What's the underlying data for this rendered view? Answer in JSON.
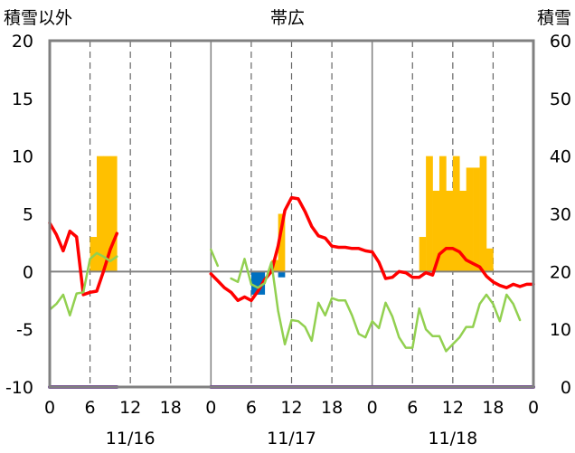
{
  "chart_data": {
    "type": "bar",
    "title": "帯広",
    "left_axis_title": "積雪以外",
    "right_axis_title": "積雪",
    "left_axis": {
      "min": -10,
      "max": 20,
      "ticks": [
        "-10",
        "-5",
        "0",
        "5",
        "10",
        "15",
        "20"
      ]
    },
    "right_axis": {
      "min": 0,
      "max": 60,
      "ticks": [
        "0",
        "10",
        "20",
        "30",
        "40",
        "50",
        "60"
      ]
    },
    "x_tick_labels": [
      "0",
      "6",
      "12",
      "18",
      "0",
      "6",
      "12",
      "18",
      "0",
      "6",
      "12",
      "18",
      "0"
    ],
    "date_labels": [
      "11/16",
      "11/17",
      "11/18"
    ],
    "grid": "dashed vertical every 6h, solid at day boundaries",
    "colors": {
      "precip_bar": "#FFC000",
      "negative_bar": "#0070C0",
      "red_line": "#FF0000",
      "green_line": "#92D050",
      "purple_line": "#7030A0",
      "frame": "#808080",
      "zero_line": "#808080"
    },
    "series": [
      {
        "kind": "bar_left_axis",
        "color": "#FFC000",
        "values": [
          [
            6,
            3
          ],
          [
            7,
            10
          ],
          [
            8,
            10
          ],
          [
            9,
            10
          ],
          [
            33,
            1
          ],
          [
            34,
            5
          ],
          [
            55,
            3
          ],
          [
            56,
            10
          ],
          [
            57,
            7
          ],
          [
            58,
            10
          ],
          [
            59,
            7
          ],
          [
            60,
            10
          ],
          [
            61,
            7
          ],
          [
            62,
            9
          ],
          [
            63,
            9
          ],
          [
            64,
            10
          ],
          [
            65,
            2
          ]
        ]
      },
      {
        "kind": "bar_left_axis",
        "color": "#0070C0",
        "values": [
          [
            30,
            -2
          ],
          [
            31,
            -2
          ],
          [
            34,
            -0.5
          ]
        ]
      },
      {
        "kind": "line_left_axis",
        "color": "#FF0000",
        "segments": [
          [
            [
              0,
              4.2
            ],
            [
              1,
              3.2
            ],
            [
              2,
              1.8
            ],
            [
              3,
              3.5
            ],
            [
              4,
              3
            ],
            [
              5,
              -2
            ],
            [
              6,
              -1.8
            ],
            [
              7,
              -1.7
            ],
            [
              8,
              0
            ],
            [
              9,
              1.9
            ],
            [
              10,
              3.3
            ]
          ],
          [
            [
              24,
              -0.2
            ],
            [
              25,
              -0.8
            ],
            [
              26,
              -1.4
            ],
            [
              27,
              -1.8
            ],
            [
              28,
              -2.5
            ],
            [
              29,
              -2.2
            ],
            [
              30,
              -2.5
            ],
            [
              31,
              -1.7
            ],
            [
              32,
              -0.7
            ],
            [
              33,
              0
            ],
            [
              34,
              2.2
            ],
            [
              35,
              5.3
            ],
            [
              36,
              6.4
            ],
            [
              37,
              6.3
            ],
            [
              38,
              5.2
            ],
            [
              39,
              3.9
            ],
            [
              40,
              3.1
            ],
            [
              41,
              2.9
            ],
            [
              42,
              2.2
            ],
            [
              43,
              2.1
            ],
            [
              44,
              2.1
            ],
            [
              45,
              2.0
            ],
            [
              46,
              2.0
            ],
            [
              47,
              1.8
            ],
            [
              48,
              1.7
            ],
            [
              49,
              0.8
            ],
            [
              50,
              -0.6
            ],
            [
              51,
              -0.5
            ],
            [
              52,
              0
            ],
            [
              53,
              -0.1
            ],
            [
              54,
              -0.5
            ],
            [
              55,
              -0.5
            ],
            [
              56,
              -0.1
            ],
            [
              57,
              -0.3
            ],
            [
              58,
              1.5
            ],
            [
              59,
              2.0
            ],
            [
              60,
              2.0
            ],
            [
              61,
              1.7
            ],
            [
              62,
              1.0
            ],
            [
              63,
              0.7
            ],
            [
              64,
              0.4
            ],
            [
              65,
              -0.4
            ],
            [
              66,
              -0.9
            ],
            [
              67,
              -1.2
            ],
            [
              68,
              -1.4
            ],
            [
              69,
              -1.1
            ],
            [
              70,
              -1.3
            ],
            [
              71,
              -1.1
            ],
            [
              72,
              -1.1
            ]
          ]
        ]
      },
      {
        "kind": "line_left_axis",
        "color": "#92D050",
        "segments": [
          [
            [
              0,
              -3.3
            ],
            [
              1,
              -2.8
            ],
            [
              2,
              -2
            ],
            [
              3,
              -3.8
            ],
            [
              4,
              -1.9
            ],
            [
              5,
              -1.8
            ],
            [
              6,
              1.1
            ],
            [
              7,
              1.6
            ],
            [
              8,
              1.3
            ],
            [
              9,
              0.9
            ],
            [
              10,
              1.3
            ]
          ],
          [
            [
              24,
              1.9
            ],
            [
              25,
              0.5
            ]
          ],
          [
            [
              27,
              -0.6
            ],
            [
              28,
              -0.9
            ],
            [
              29,
              1.1
            ],
            [
              30,
              -1.1
            ],
            [
              31,
              -1.4
            ],
            [
              32,
              -1.0
            ],
            [
              33,
              0.8
            ],
            [
              34,
              -3.4
            ],
            [
              35,
              -6.3
            ],
            [
              36,
              -4.2
            ],
            [
              37,
              -4.3
            ],
            [
              38,
              -4.8
            ],
            [
              39,
              -6.0
            ],
            [
              40,
              -2.7
            ],
            [
              41,
              -3.8
            ],
            [
              42,
              -2.3
            ],
            [
              43,
              -2.5
            ],
            [
              44,
              -2.5
            ],
            [
              45,
              -3.8
            ],
            [
              46,
              -5.4
            ],
            [
              47,
              -5.7
            ],
            [
              48,
              -4.3
            ],
            [
              49,
              -4.9
            ],
            [
              50,
              -2.7
            ],
            [
              51,
              -3.9
            ],
            [
              52,
              -5.7
            ],
            [
              53,
              -6.6
            ],
            [
              54,
              -6.6
            ],
            [
              55,
              -3.2
            ],
            [
              56,
              -5.0
            ],
            [
              57,
              -5.6
            ],
            [
              58,
              -5.6
            ],
            [
              59,
              -6.9
            ],
            [
              60,
              -6.3
            ],
            [
              61,
              -5.7
            ],
            [
              62,
              -4.8
            ],
            [
              63,
              -4.8
            ],
            [
              64,
              -2.8
            ],
            [
              65,
              -2
            ],
            [
              66,
              -2.8
            ],
            [
              67,
              -4.3
            ],
            [
              68,
              -2
            ],
            [
              69,
              -2.8
            ],
            [
              70,
              -4.2
            ]
          ]
        ]
      },
      {
        "kind": "line_right_axis",
        "color": "#7030A0",
        "segments": [
          [
            [
              0,
              0
            ],
            [
              10,
              0
            ]
          ],
          [
            [
              24,
              0
            ],
            [
              72,
              0
            ]
          ]
        ]
      }
    ]
  }
}
